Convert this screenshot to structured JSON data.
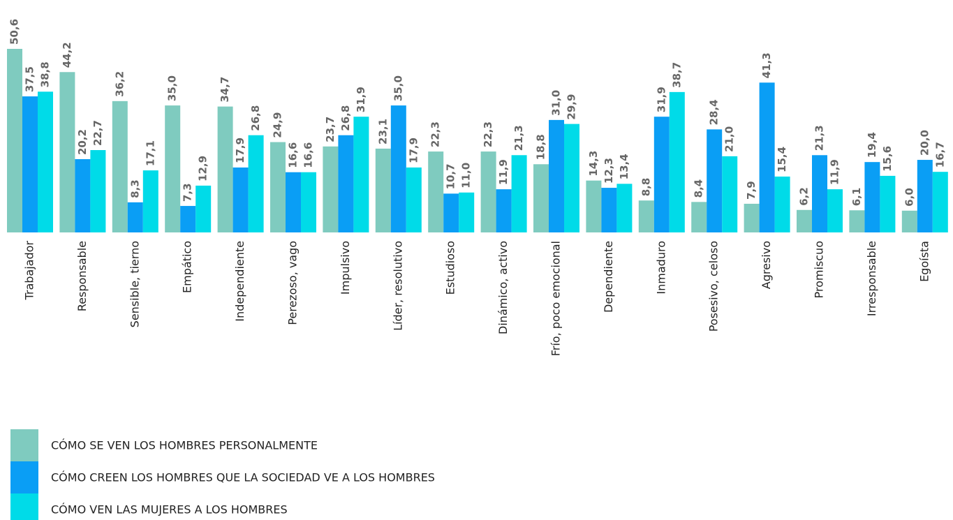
{
  "chart_data": {
    "type": "bar",
    "categories": [
      "Trabajador",
      "Responsable",
      "Sensible, tierno",
      "Empático",
      "Independiente",
      "Perezoso, vago",
      "Impulsivo",
      "Líder, resolutivo",
      "Estudioso",
      "Dinámico, activo",
      "Frío, poco emocional",
      "Dependiente",
      "Inmaduro",
      "Posesivo, celoso",
      "Agresivo",
      "Promiscuo",
      "Irresponsable",
      "Egoísta"
    ],
    "series": [
      {
        "name": "CÓMO SE VEN LOS HOMBRES PERSONALMENTE",
        "color": "#7fcbbf",
        "values": [
          50.6,
          44.2,
          36.2,
          35,
          34.7,
          24.9,
          23.7,
          23.1,
          22.3,
          22.3,
          18.8,
          14.3,
          8.8,
          8.4,
          7.9,
          6.2,
          6.1,
          6
        ],
        "value_labels": [
          "50,6",
          "44,2",
          "36,2",
          "35,0",
          "34,7",
          "24,9",
          "23,7",
          "23,1",
          "22,3",
          "22,3",
          "18,8",
          "14,3",
          "8,8",
          "8,4",
          "7,9",
          "6,2",
          "6,1",
          "6,0"
        ]
      },
      {
        "name": "CÓMO CREEN LOS HOMBRES QUE LA SOCIEDAD VE A LOS HOMBRES",
        "color": "#0a9ef5",
        "values": [
          37.5,
          20.2,
          8.3,
          7.3,
          17.9,
          16.6,
          26.8,
          35,
          10.7,
          11.9,
          31,
          12.3,
          31.9,
          28.4,
          41.3,
          21.3,
          19.4,
          20
        ],
        "value_labels": [
          "37,5",
          "20,2",
          "8,3",
          "7,3",
          "17,9",
          "16,6",
          "26,8",
          "35,0",
          "10,7",
          "11,9",
          "31,0",
          "12,3",
          "31,9",
          "28,4",
          "41,3",
          "21,3",
          "19,4",
          "20,0"
        ]
      },
      {
        "name": "CÓMO VEN LAS MUJERES A LOS HOMBRES",
        "color": "#00dbe8",
        "values": [
          38.8,
          22.7,
          17.1,
          12.9,
          26.8,
          16.6,
          31.9,
          17.9,
          11,
          21.3,
          29.9,
          13.4,
          38.7,
          21,
          15.4,
          11.9,
          15.6,
          16.7
        ],
        "value_labels": [
          "38,8",
          "22,7",
          "17,1",
          "12,9",
          "26,8",
          "16,6",
          "31,9",
          "17,9",
          "11,0",
          "21,3",
          "29,9",
          "13,4",
          "38,7",
          "21,0",
          "15,4",
          "11,9",
          "15,6",
          "16,7"
        ]
      }
    ]
  }
}
